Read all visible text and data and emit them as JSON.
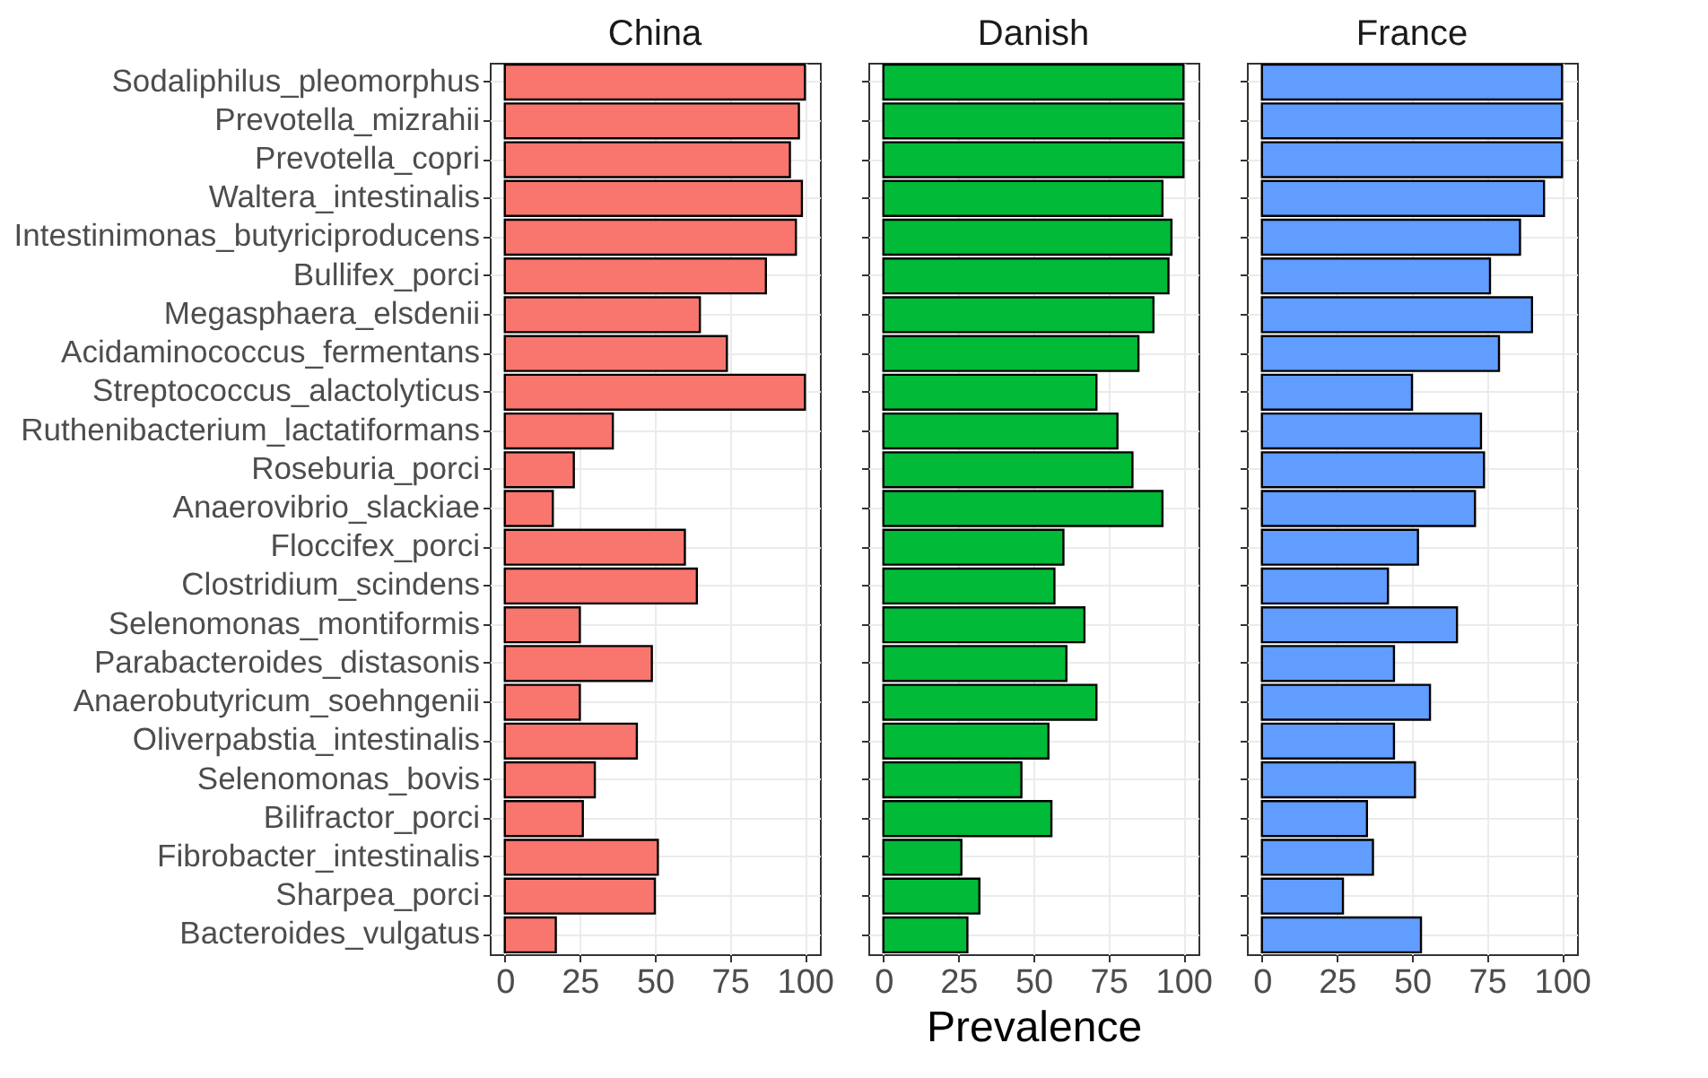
{
  "chart_data": [
    {
      "type": "bar",
      "orientation": "horizontal",
      "title": "China",
      "ylabel": null,
      "categories": [
        "Sodaliphilus_pleomorphus",
        "Prevotella_mizrahii",
        "Prevotella_copri",
        "Waltera_intestinalis",
        "Intestinimonas_butyriciproducens",
        "Bullifex_porci",
        "Megasphaera_elsdenii",
        "Acidaminococcus_fermentans",
        "Streptococcus_alactolyticus",
        "Ruthenibacterium_lactatiformans",
        "Roseburia_porci",
        "Anaerovibrio_slackiae",
        "Floccifex_porci",
        "Clostridium_scindens",
        "Selenomonas_montiformis",
        "Parabacteroides_distasonis",
        "Anaerobutyricum_soehngenii",
        "Oliverpabstia_intestinalis",
        "Selenomonas_bovis",
        "Bilifractor_porci",
        "Fibrobacter_intestinalis",
        "Sharpea_porci",
        "Bacteroides_vulgatus"
      ],
      "values": [
        100,
        98,
        95,
        99,
        97,
        87,
        65,
        74,
        100,
        36,
        23,
        16,
        60,
        64,
        25,
        49,
        25,
        44,
        30,
        26,
        51,
        50,
        17
      ],
      "color": "#f8766d",
      "xlim": [
        -5,
        105
      ],
      "xticks": [
        0,
        25,
        50,
        75,
        100
      ],
      "grid": true
    },
    {
      "type": "bar",
      "orientation": "horizontal",
      "title": "Danish",
      "xlabel": "Prevalence",
      "tick_labels": "x",
      "categories": [
        "Sodaliphilus_pleomorphus",
        "Prevotella_mizrahii",
        "Prevotella_copri",
        "Waltera_intestinalis",
        "Intestinimonas_butyriciproducens",
        "Bullifex_porci",
        "Megasphaera_elsdenii",
        "Acidaminococcus_fermentans",
        "Streptococcus_alactolyticus",
        "Ruthenibacterium_lactatiformans",
        "Roseburia_porci",
        "Anaerovibrio_slackiae",
        "Floccifex_porci",
        "Clostridium_scindens",
        "Selenomonas_montiformis",
        "Parabacteroides_distasonis",
        "Anaerobutyricum_soehngenii",
        "Oliverpabstia_intestinalis",
        "Selenomonas_bovis",
        "Bilifractor_porci",
        "Fibrobacter_intestinalis",
        "Sharpea_porci",
        "Bacteroides_vulgatus"
      ],
      "values": [
        100,
        100,
        100,
        93,
        96,
        95,
        90,
        85,
        71,
        78,
        83,
        93,
        60,
        57,
        67,
        61,
        71,
        55,
        46,
        56,
        26,
        32,
        28
      ],
      "color": "#00ba38",
      "xlim": [
        -5,
        105
      ],
      "xticks": [
        0,
        25,
        50,
        75,
        100
      ],
      "grid": true
    },
    {
      "type": "bar",
      "orientation": "horizontal",
      "title": "France",
      "tick_labels": "x",
      "categories": [
        "Sodaliphilus_pleomorphus",
        "Prevotella_mizrahii",
        "Prevotella_copri",
        "Waltera_intestinalis",
        "Intestinimonas_butyriciproducens",
        "Bullifex_porci",
        "Megasphaera_elsdenii",
        "Acidaminococcus_fermentans",
        "Streptococcus_alactolyticus",
        "Ruthenibacterium_lactatiformans",
        "Roseburia_porci",
        "Anaerovibrio_slackiae",
        "Floccifex_porci",
        "Clostridium_scindens",
        "Selenomonas_montiformis",
        "Parabacteroides_distasonis",
        "Anaerobutyricum_soehngenii",
        "Oliverpabstia_intestinalis",
        "Selenomonas_bovis",
        "Bilifractor_porci",
        "Fibrobacter_intestinalis",
        "Sharpea_porci",
        "Bacteroides_vulgatus"
      ],
      "values": [
        100,
        100,
        100,
        94,
        86,
        76,
        90,
        79,
        50,
        73,
        74,
        71,
        52,
        42,
        65,
        44,
        56,
        44,
        51,
        35,
        37,
        27,
        53
      ],
      "color": "#619cff",
      "xlim": [
        -5,
        105
      ],
      "xticks": [
        0,
        25,
        50,
        75,
        100
      ],
      "grid": true
    }
  ]
}
